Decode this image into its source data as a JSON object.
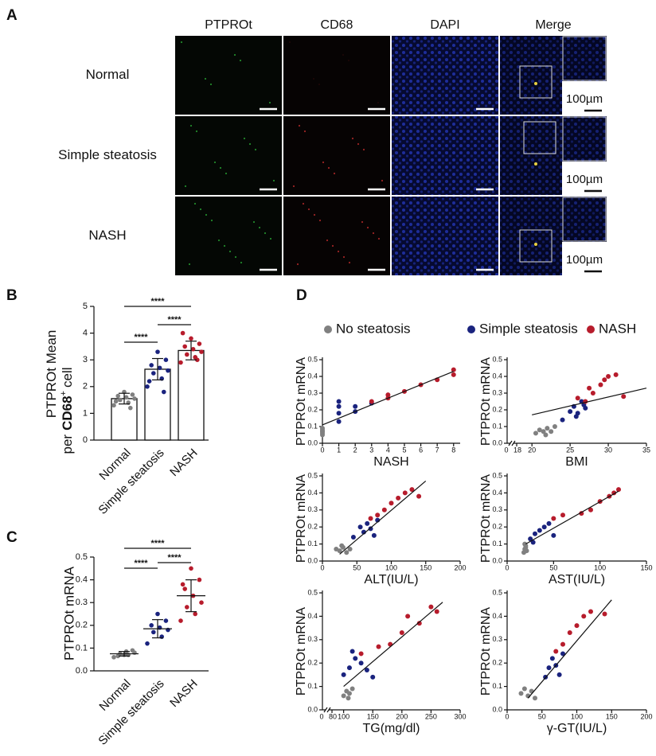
{
  "panel_a": {
    "label": "A",
    "columns": [
      "PTPROt",
      "CD68",
      "DAPI",
      "Merge"
    ],
    "colors": [
      "#1f9a2a",
      "#d4202c",
      "#1c2a9a",
      "#111111"
    ],
    "rows": [
      "Normal",
      "Simple steatosis",
      "NASH"
    ],
    "scale_bar": "100µm"
  },
  "panel_b": {
    "label": "B",
    "type": "bar",
    "ylabel": [
      "PTPROt Mean",
      "per",
      "CD68",
      "+",
      "cell"
    ],
    "categories": [
      "Normal",
      "Simple steatosis",
      "NASH"
    ],
    "colors": [
      "#808080",
      "#1a237e",
      "#b71c2c"
    ],
    "values": [
      1.55,
      2.65,
      3.35
    ],
    "errors": [
      0.2,
      0.4,
      0.35
    ],
    "dots": [
      [
        1.3,
        1.4,
        1.5,
        1.55,
        1.6,
        1.65,
        1.7,
        1.8,
        1.45,
        1.2
      ],
      [
        2.0,
        2.3,
        2.5,
        2.6,
        2.7,
        2.8,
        3.0,
        3.3,
        2.2,
        1.8
      ],
      [
        2.9,
        3.1,
        3.2,
        3.3,
        3.4,
        3.5,
        3.6,
        3.8,
        4.0,
        3.0
      ]
    ],
    "ylim": [
      0,
      5
    ],
    "yticks": [
      0,
      1,
      2,
      3,
      4,
      5
    ],
    "significance": [
      "****",
      "****",
      "****"
    ]
  },
  "panel_c": {
    "label": "C",
    "type": "scatter",
    "ylabel": "PTPROt mRNA",
    "categories": [
      "Normal",
      "Simple steatosis",
      "NASH"
    ],
    "colors": [
      "#808080",
      "#1a237e",
      "#b71c2c"
    ],
    "values": [
      0.075,
      0.185,
      0.33
    ],
    "errors": [
      0.01,
      0.04,
      0.07
    ],
    "dots": [
      [
        0.06,
        0.07,
        0.075,
        0.08,
        0.085,
        0.065,
        0.09,
        0.07
      ],
      [
        0.12,
        0.15,
        0.17,
        0.18,
        0.19,
        0.2,
        0.22,
        0.25
      ],
      [
        0.22,
        0.25,
        0.28,
        0.3,
        0.33,
        0.36,
        0.4,
        0.45,
        0.38
      ]
    ],
    "ylim": [
      0,
      0.5
    ],
    "yticks": [
      {
        "value": 0,
        "label": "0.0"
      },
      0.1,
      0.2,
      0.3,
      0.4,
      0.5
    ],
    "significance": [
      "****",
      "****",
      "****"
    ]
  },
  "panel_d": {
    "label": "D",
    "type": "scatter",
    "legend": [
      {
        "name": "No steatosis",
        "color": "#808080"
      },
      {
        "name": "Simple steatosis",
        "color": "#1a237e"
      },
      {
        "name": "NASH",
        "color": "#b71c2c"
      }
    ],
    "ylabel": "PTPROt mRNA",
    "ylim": [
      0,
      0.5
    ],
    "yticks": [
      {
        "value": 0,
        "label": "0.0"
      },
      0.1,
      0.2,
      0.3,
      0.4,
      0.5
    ],
    "plots": [
      {
        "xlabel": "NASH",
        "xlim": [
          0,
          8.4
        ],
        "xticks": [
          0,
          1,
          2,
          3,
          4,
          5,
          6,
          7,
          8
        ],
        "fit": {
          "x": [
            0,
            8
          ],
          "y": [
            0.11,
            0.43
          ]
        },
        "groups": [
          {
            "x": [
              0,
              0,
              0,
              0,
              0,
              0
            ],
            "y": [
              0.05,
              0.07,
              0.08,
              0.06,
              0.09,
              0.07
            ]
          },
          {
            "x": [
              1,
              1,
              1,
              1,
              2,
              2,
              3
            ],
            "y": [
              0.13,
              0.18,
              0.22,
              0.25,
              0.19,
              0.22,
              0.24
            ]
          },
          {
            "x": [
              3,
              4,
              4,
              5,
              6,
              7,
              8,
              8
            ],
            "y": [
              0.25,
              0.27,
              0.29,
              0.31,
              0.35,
              0.38,
              0.41,
              0.44
            ]
          }
        ]
      },
      {
        "xlabel": "BMI",
        "xorigin": 0,
        "xlim": [
          18,
          35
        ],
        "xticks": [
          18,
          20,
          25,
          30,
          35
        ],
        "fit": {
          "x": [
            20,
            35
          ],
          "y": [
            0.17,
            0.33
          ]
        },
        "groups": [
          {
            "x": [
              20.5,
              21,
              21.5,
              22,
              22.5,
              23,
              21.8
            ],
            "y": [
              0.06,
              0.08,
              0.07,
              0.09,
              0.07,
              0.1,
              0.05
            ]
          },
          {
            "x": [
              24,
              25,
              25.5,
              26,
              26.5,
              27,
              25.8,
              26.8
            ],
            "y": [
              0.14,
              0.19,
              0.22,
              0.18,
              0.25,
              0.21,
              0.16,
              0.23
            ]
          },
          {
            "x": [
              26,
              27,
              28,
              29,
              30,
              31,
              32,
              27.5,
              29.5
            ],
            "y": [
              0.27,
              0.25,
              0.3,
              0.35,
              0.4,
              0.41,
              0.28,
              0.33,
              0.38
            ]
          }
        ]
      },
      {
        "xlabel": "ALT(IU/L)",
        "xlim": [
          0,
          200
        ],
        "xticks": [
          0,
          50,
          100,
          150,
          200
        ],
        "fit": {
          "x": [
            25,
            150
          ],
          "y": [
            0.04,
            0.47
          ]
        },
        "groups": [
          {
            "x": [
              20,
              25,
              30,
              35,
              40,
              28
            ],
            "y": [
              0.07,
              0.06,
              0.08,
              0.05,
              0.07,
              0.09
            ]
          },
          {
            "x": [
              45,
              55,
              60,
              65,
              70,
              75,
              80
            ],
            "y": [
              0.14,
              0.2,
              0.17,
              0.22,
              0.19,
              0.15,
              0.24
            ]
          },
          {
            "x": [
              70,
              80,
              90,
              100,
              110,
              120,
              130,
              140
            ],
            "y": [
              0.25,
              0.27,
              0.3,
              0.34,
              0.37,
              0.4,
              0.42,
              0.38
            ]
          }
        ]
      },
      {
        "xlabel": "AST(IU/L)",
        "xlim": [
          0,
          150
        ],
        "xticks": [
          0,
          50,
          100,
          150
        ],
        "fit": {
          "x": [
            20,
            120
          ],
          "y": [
            0.1,
            0.41
          ]
        },
        "groups": [
          {
            "x": [
              18,
              19,
              20,
              21,
              20,
              19
            ],
            "y": [
              0.05,
              0.07,
              0.09,
              0.06,
              0.08,
              0.1
            ]
          },
          {
            "x": [
              25,
              30,
              35,
              40,
              45,
              50,
              28
            ],
            "y": [
              0.13,
              0.16,
              0.18,
              0.2,
              0.22,
              0.15,
              0.11
            ]
          },
          {
            "x": [
              50,
              60,
              80,
              90,
              100,
              110,
              115,
              120
            ],
            "y": [
              0.25,
              0.27,
              0.28,
              0.3,
              0.35,
              0.38,
              0.4,
              0.42
            ]
          }
        ]
      },
      {
        "xlabel": "TG(mg/dl)",
        "xorigin": 0,
        "xlim": [
          80,
          300
        ],
        "xticks": [
          80,
          100,
          150,
          200,
          250,
          300
        ],
        "fit": {
          "x": [
            100,
            270
          ],
          "y": [
            0.1,
            0.46
          ]
        },
        "groups": [
          {
            "x": [
              100,
              105,
              110,
              115,
              108
            ],
            "y": [
              0.06,
              0.08,
              0.07,
              0.09,
              0.05
            ]
          },
          {
            "x": [
              100,
              110,
              120,
              130,
              140,
              150,
              115
            ],
            "y": [
              0.15,
              0.18,
              0.22,
              0.2,
              0.17,
              0.14,
              0.25
            ]
          },
          {
            "x": [
              130,
              160,
              180,
              200,
              210,
              230,
              250,
              260
            ],
            "y": [
              0.24,
              0.27,
              0.28,
              0.33,
              0.4,
              0.37,
              0.44,
              0.42
            ]
          }
        ]
      },
      {
        "xlabel": "γ-GT(IU/L)",
        "xlim": [
          0,
          200
        ],
        "xticks": [
          0,
          50,
          100,
          150,
          200
        ],
        "fit": {
          "x": [
            30,
            150
          ],
          "y": [
            0.05,
            0.47
          ]
        },
        "groups": [
          {
            "x": [
              20,
              30,
              35,
              40,
              25
            ],
            "y": [
              0.07,
              0.06,
              0.08,
              0.05,
              0.09
            ]
          },
          {
            "x": [
              55,
              60,
              65,
              70,
              75,
              80
            ],
            "y": [
              0.14,
              0.18,
              0.22,
              0.19,
              0.15,
              0.24
            ]
          },
          {
            "x": [
              70,
              80,
              90,
              100,
              110,
              120,
              140
            ],
            "y": [
              0.25,
              0.28,
              0.33,
              0.36,
              0.4,
              0.42,
              0.41
            ]
          }
        ]
      }
    ]
  }
}
